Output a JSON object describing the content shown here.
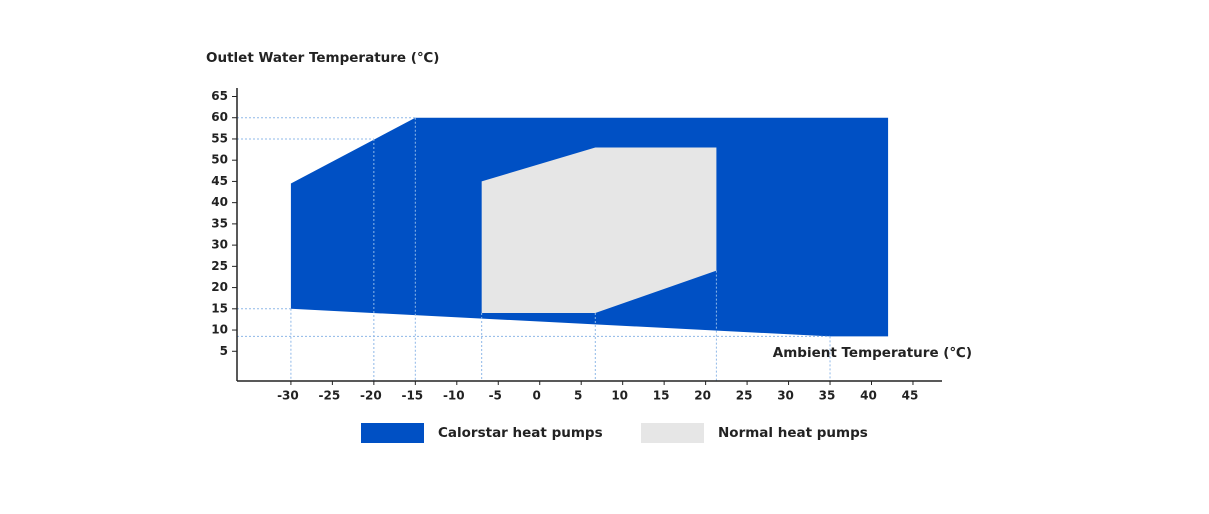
{
  "chart_data": {
    "type": "polygon",
    "y_label": "Outlet Water Temperature (℃)",
    "x_label": "Ambient Temperature (℃)",
    "xlim": [
      -36.5,
      48.5
    ],
    "ylim": [
      -2,
      67
    ],
    "xticks": [
      -30,
      -25,
      -20,
      -15,
      -10,
      -5,
      0,
      5,
      10,
      15,
      20,
      25,
      30,
      35,
      40,
      45
    ],
    "yticks": [
      5,
      10,
      15,
      20,
      25,
      30,
      35,
      40,
      45,
      50,
      55,
      60,
      65
    ],
    "series": [
      {
        "name": "Calorstar heat pumps",
        "color": "#0050c4",
        "x": [
          -30,
          -30,
          35,
          42,
          42,
          -15
        ],
        "values": [
          44.5,
          15,
          8.5,
          8.5,
          60,
          60
        ]
      },
      {
        "name": "Normal heat pumps",
        "color": "#e6e6e6",
        "x": [
          -7,
          6.7,
          21.3,
          21.3,
          6.7,
          -7
        ],
        "values": [
          45,
          53,
          53,
          24,
          14,
          14
        ]
      }
    ],
    "guides": [
      {
        "x": -30,
        "y": 15,
        "horizontal": true
      },
      {
        "x": -20,
        "y": 55,
        "horizontal": true
      },
      {
        "x": -15,
        "y": 60,
        "horizontal": true
      },
      {
        "x": 35,
        "y": 8.5,
        "horizontal": true
      },
      {
        "x": -7,
        "y": 14,
        "horizontal": false
      },
      {
        "x": 6.7,
        "y": 14,
        "horizontal": false
      },
      {
        "x": 21.3,
        "y": 24,
        "horizontal": false
      }
    ]
  }
}
